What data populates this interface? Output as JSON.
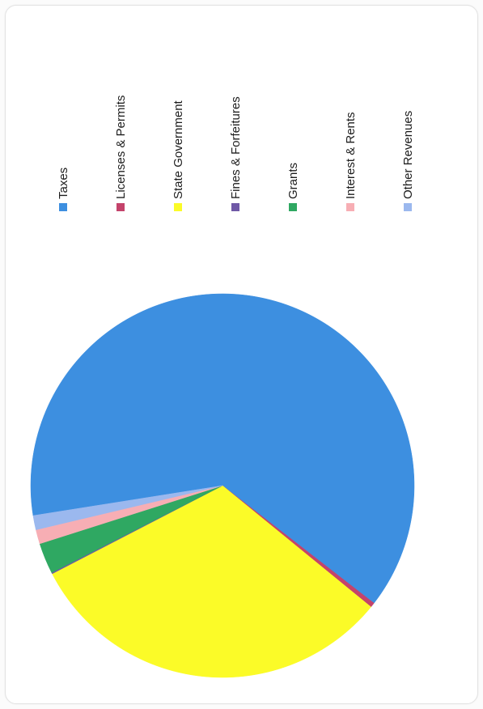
{
  "chart_data": {
    "type": "pie",
    "title": "",
    "legend_position": "top",
    "slices": [
      {
        "label": "Taxes",
        "value": 63.0,
        "color": "#3d8fe0"
      },
      {
        "label": "Licenses & Permits",
        "value": 0.4,
        "color": "#c4436b"
      },
      {
        "label": "State Government",
        "value": 31.5,
        "color": "#fbfb28"
      },
      {
        "label": "Fines & Forfeitures",
        "value": 0.1,
        "color": "#6f58a6"
      },
      {
        "label": "Grants",
        "value": 2.6,
        "color": "#2fa862"
      },
      {
        "label": "Interest & Rents",
        "value": 1.2,
        "color": "#f7aeb4"
      },
      {
        "label": "Other Revenues",
        "value": 1.2,
        "color": "#9bb8ee"
      }
    ]
  }
}
